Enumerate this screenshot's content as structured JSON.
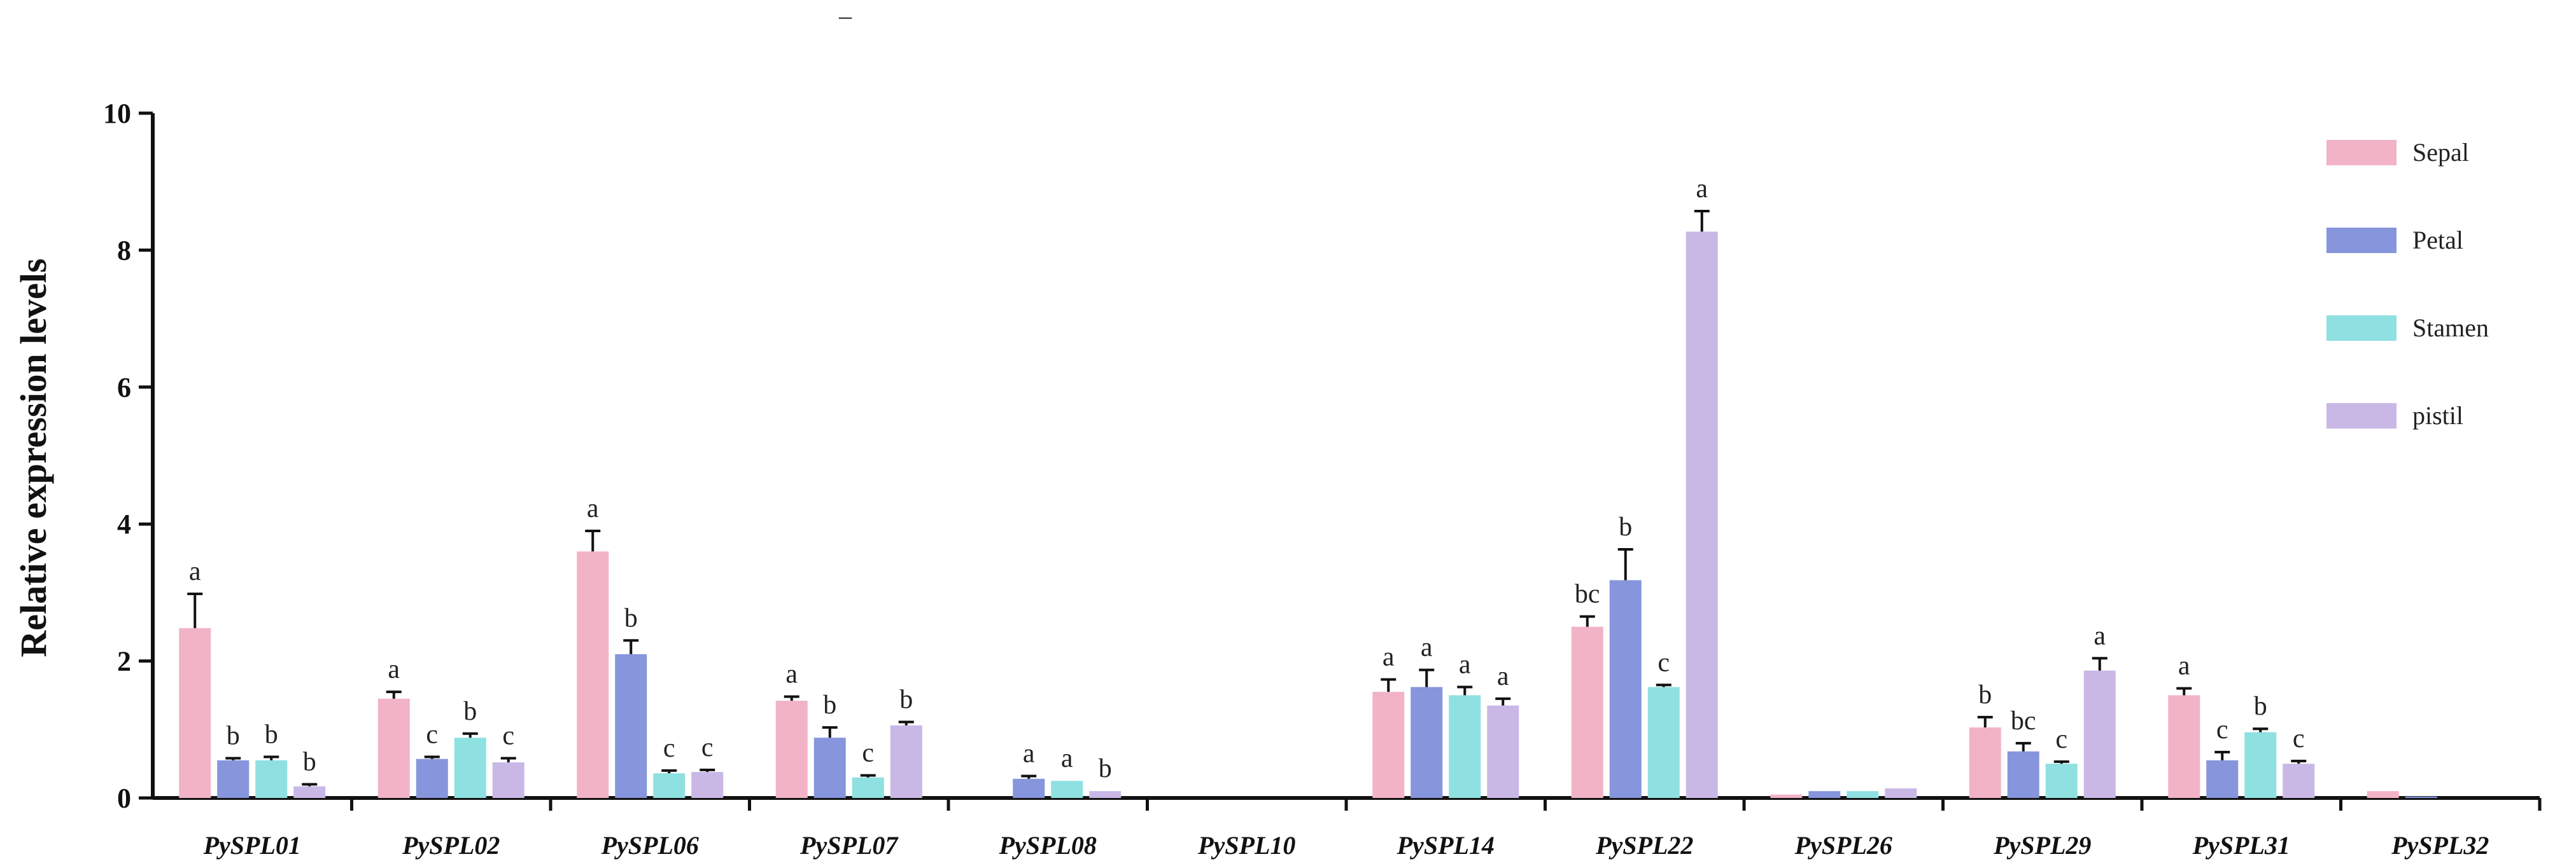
{
  "stray_mark": "–",
  "chart_data": {
    "type": "bar",
    "title": "",
    "xlabel": "",
    "ylabel": "Relative expression levels",
    "ylim": [
      0,
      10
    ],
    "yticks": [
      "0",
      "2",
      "4",
      "6",
      "8",
      "10"
    ],
    "grid": false,
    "legend_position": "top-right",
    "categories": [
      "PySPL01",
      "PySPL02",
      "PySPL06",
      "PySPL07",
      "PySPL08",
      "PySPL10",
      "PySPL14",
      "PySPL22",
      "PySPL26",
      "PySPL29",
      "PySPL31",
      "PySPL32"
    ],
    "series": [
      {
        "name": "Sepal",
        "color": "#f2b3c6",
        "values": [
          2.48,
          1.45,
          3.6,
          1.42,
          0.0,
          0.0,
          1.55,
          2.5,
          0.05,
          1.03,
          1.5,
          0.1
        ],
        "errors": [
          0.5,
          0.1,
          0.3,
          0.06,
          0.0,
          0.0,
          0.18,
          0.15,
          0.0,
          0.15,
          0.1,
          0.0
        ],
        "labels": [
          "a",
          "a",
          "a",
          "a",
          "",
          "",
          "a",
          "bc",
          "",
          "b",
          "a",
          ""
        ]
      },
      {
        "name": "Petal",
        "color": "#8695dc",
        "values": [
          0.55,
          0.57,
          2.1,
          0.88,
          0.28,
          0.0,
          1.62,
          3.18,
          0.1,
          0.68,
          0.55,
          0.02
        ],
        "errors": [
          0.03,
          0.03,
          0.2,
          0.15,
          0.04,
          0.0,
          0.25,
          0.45,
          0.0,
          0.12,
          0.12,
          0.0
        ],
        "labels": [
          "b",
          "c",
          "b",
          "b",
          "a",
          "",
          "a",
          "b",
          "",
          "bc",
          "c",
          ""
        ]
      },
      {
        "name": "Stamen",
        "color": "#8fe0e1",
        "values": [
          0.55,
          0.88,
          0.36,
          0.3,
          0.25,
          0.0,
          1.5,
          1.62,
          0.1,
          0.5,
          0.96,
          0.0
        ],
        "errors": [
          0.05,
          0.06,
          0.04,
          0.03,
          0.0,
          0.0,
          0.12,
          0.03,
          0.0,
          0.03,
          0.05,
          0.0
        ],
        "labels": [
          "b",
          "b",
          "c",
          "c",
          "a",
          "",
          "a",
          "c",
          "",
          "c",
          "b",
          ""
        ]
      },
      {
        "name": "pistil",
        "color": "#c9b8e6",
        "values": [
          0.17,
          0.52,
          0.38,
          1.06,
          0.1,
          0.0,
          1.35,
          8.27,
          0.14,
          1.86,
          0.5,
          0.0
        ],
        "errors": [
          0.03,
          0.06,
          0.03,
          0.05,
          0.0,
          0.0,
          0.1,
          0.3,
          0.0,
          0.18,
          0.04,
          0.0
        ],
        "labels": [
          "b",
          "c",
          "c",
          "b",
          "b",
          "",
          "a",
          "a",
          "",
          "a",
          "c",
          ""
        ]
      }
    ]
  }
}
